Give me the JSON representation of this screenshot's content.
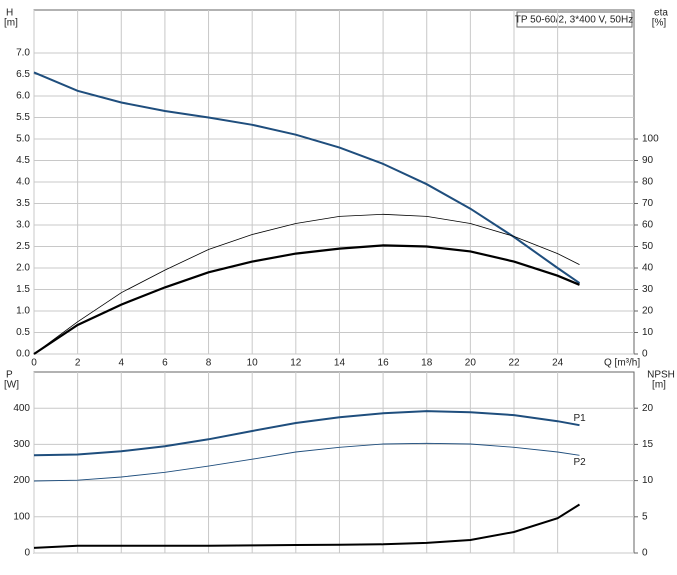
{
  "chart_data": [
    {
      "type": "line",
      "annotation": "TP 50-60/2, 3*400 V, 50Hz",
      "xlabel": "Q [m³/h]",
      "ylabel": "H",
      "yunit": "[m]",
      "y2label": "eta",
      "y2unit": "[%]",
      "x": [
        0,
        2,
        4,
        6,
        8,
        10,
        12,
        14,
        16,
        18,
        20,
        22,
        24,
        25
      ],
      "xlim": [
        0,
        27.5
      ],
      "xticks": [
        0,
        2,
        4,
        6,
        8,
        10,
        12,
        14,
        16,
        18,
        20,
        22,
        24
      ],
      "ylim": [
        0,
        8
      ],
      "yticks": [
        {
          "value": 0,
          "label": "0.0"
        },
        0.5,
        {
          "value": 1,
          "label": "1.0"
        },
        1.5,
        {
          "value": 2,
          "label": "2.0"
        },
        2.5,
        {
          "value": 3,
          "label": "3.0"
        },
        3.5,
        {
          "value": 4,
          "label": "4.0"
        },
        4.5,
        {
          "value": 5,
          "label": "5.0"
        },
        5.5,
        {
          "value": 6,
          "label": "6.0"
        },
        6.5,
        {
          "value": 7,
          "label": "7.0"
        }
      ],
      "y2lim": [
        0,
        160
      ],
      "y2ticks": [
        0,
        10,
        20,
        30,
        40,
        50,
        60,
        70,
        80,
        90,
        100
      ],
      "grid": true,
      "series": [
        {
          "color": "#1f4e7d",
          "width": 2,
          "values": [
            6.55,
            6.12,
            5.85,
            5.65,
            5.5,
            5.33,
            5.1,
            4.8,
            4.42,
            3.95,
            3.38,
            2.72,
            2.0,
            1.65
          ]
        },
        {
          "color": "#000000",
          "width": 0.8,
          "axis": "y2",
          "values": [
            0,
            15,
            28.5,
            39,
            48.6,
            55.6,
            60.7,
            64,
            65,
            64,
            60.7,
            54.7,
            46.7,
            41.6
          ]
        },
        {
          "color": "#000000",
          "width": 2.2,
          "axis": "y2",
          "values": [
            0,
            13.5,
            23,
            31,
            38,
            43,
            46.7,
            49,
            50.5,
            50,
            47.7,
            43,
            36.4,
            32.2
          ]
        }
      ]
    },
    {
      "type": "line",
      "ylabel": "P",
      "yunit": "[W]",
      "y2label": "NPSH",
      "y2unit": "[m]",
      "x": [
        0,
        2,
        4,
        6,
        8,
        10,
        12,
        14,
        16,
        18,
        20,
        22,
        24,
        25
      ],
      "xlim": [
        0,
        27.5
      ],
      "ylim": [
        0,
        500
      ],
      "yticks": [
        0,
        100,
        200,
        300,
        400
      ],
      "y2lim": [
        0,
        25
      ],
      "y2ticks": [
        0,
        5,
        10,
        15,
        20
      ],
      "grid": true,
      "series": [
        {
          "name": "P1",
          "color": "#1f4e7d",
          "width": 2,
          "values": [
            270,
            272,
            281,
            295,
            314,
            337,
            359,
            375,
            386,
            392,
            389,
            381,
            364,
            353
          ]
        },
        {
          "name": "P2",
          "color": "#1f4e7d",
          "width": 0.9,
          "values": [
            199,
            201,
            210,
            223,
            240,
            259,
            279,
            292,
            301,
            303,
            301,
            292,
            279,
            270
          ]
        },
        {
          "color": "#000000",
          "width": 2,
          "axis": "y2",
          "values": [
            0.7,
            1.0,
            1.0,
            1.0,
            1.0,
            1.05,
            1.1,
            1.15,
            1.2,
            1.4,
            1.8,
            2.9,
            4.8,
            6.7
          ]
        }
      ]
    }
  ]
}
